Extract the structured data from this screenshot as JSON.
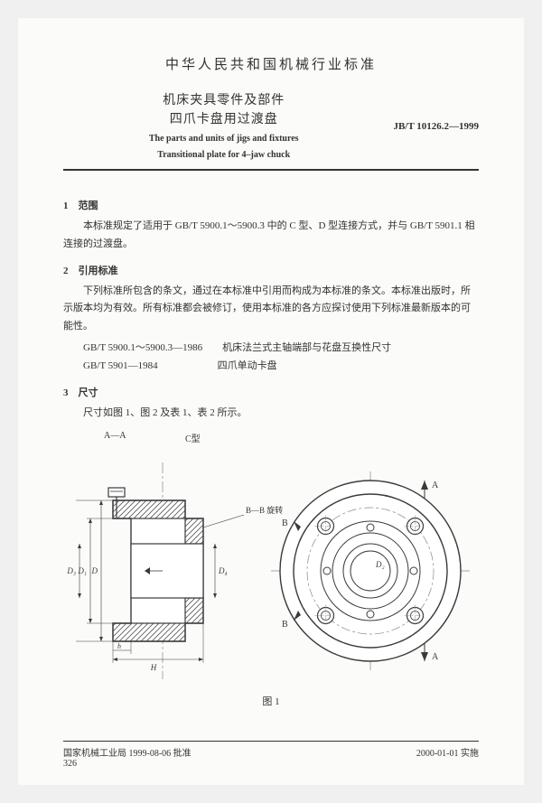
{
  "header": "中华人民共和国机械行业标准",
  "title_cn_line1": "机床夹具零件及部件",
  "title_cn_line2": "四爪卡盘用过渡盘",
  "title_en_line1": "The parts and units of jigs and fixtures",
  "title_en_line2": "Transitional plate for 4–jaw chuck",
  "std_code": "JB/T 10126.2—1999",
  "sec1_head": "1　范围",
  "sec1_body": "本标准规定了适用于 GB/T 5900.1～5900.3 中的 C 型、D 型连接方式，并与 GB/T 5901.1 相连接的过渡盘。",
  "sec2_head": "2　引用标准",
  "sec2_body": "下列标准所包含的条文，通过在本标准中引用而构成为本标准的条文。本标准出版时，所示版本均为有效。所有标准都会被修订，使用本标准的各方应探讨使用下列标准最新版本的可能性。",
  "ref1": "GB/T 5900.1～5900.3—1986　　机床法兰式主轴端部与花盘互换性尺寸",
  "ref2": "GB/T 5901—1984　　　　　　四爪单动卡盘",
  "sec3_head": "3　尺寸",
  "sec3_body": "尺寸如图 1、图 2 及表 1、表 2 所示。",
  "fig_label_aa": "A—A",
  "fig_label_ctype": "C型",
  "fig_label_bb": "B—B 旋转",
  "fig_caption": "图 1",
  "fig": {
    "dim_D": "D",
    "dim_D1": "D₁",
    "dim_D3": "D₃",
    "dim_D4": "D₄",
    "dim_D2": "D₂",
    "dim_h": "h",
    "dim_H": "H",
    "arrow_A": "A",
    "arrow_B": "B",
    "stroke": "#3a3a3a",
    "hatch": "#555",
    "light": "#888"
  },
  "footer_left": "国家机械工业局 1999-08-06 批准",
  "footer_right": "2000-01-01 实施",
  "page_num": "326"
}
